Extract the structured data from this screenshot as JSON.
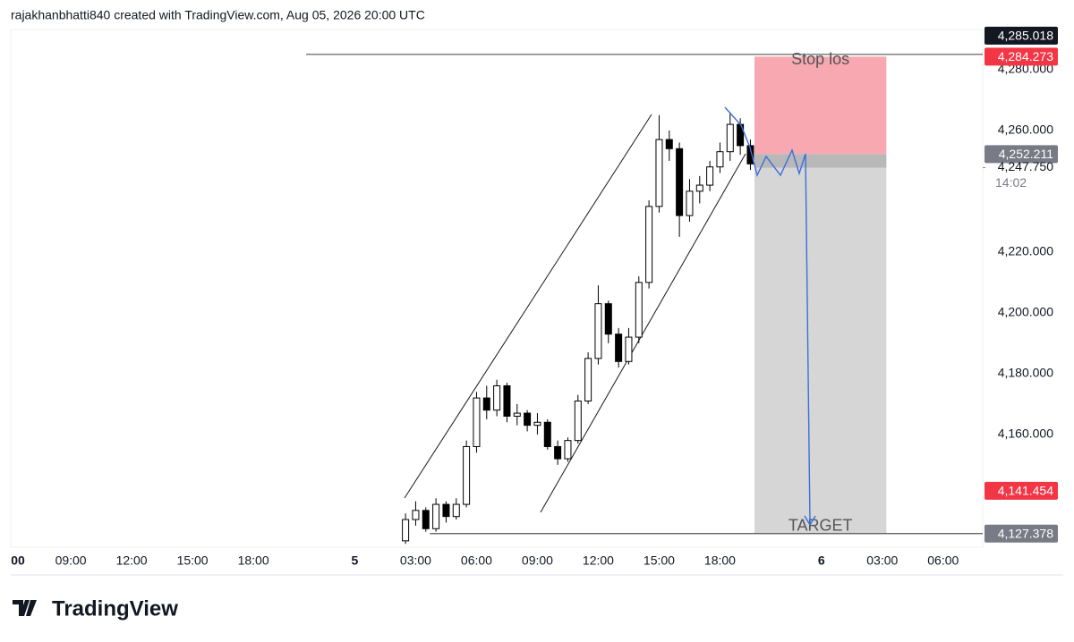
{
  "header": "rajakhanbhatti840 created with TradingView.com, Aug 05, 2026 20:00 UTC",
  "chart_data": {
    "type": "candlestick",
    "x": [
      25.5,
      26,
      26.5,
      27,
      27.5,
      28,
      28.5,
      29,
      29.5,
      30,
      30.5,
      31,
      31.5,
      32,
      32.5,
      33,
      33.5,
      34,
      34.5,
      35,
      35.5,
      36,
      36.5,
      37,
      37.5,
      38,
      38.5,
      39,
      39.5,
      40,
      40.5,
      41,
      41.5,
      42,
      42.5
    ],
    "open": [
      4125,
      4132,
      4135,
      4129,
      4137,
      4133,
      4137,
      4156,
      4172,
      4168,
      4176,
      4166,
      4167,
      4163,
      4164,
      4156,
      4152,
      4158,
      4171,
      4185,
      4203,
      4193,
      4184,
      4192,
      4210,
      4235,
      4257,
      4254,
      4232,
      4240,
      4242,
      4248,
      4253,
      4262,
      4255
    ],
    "high": [
      4134,
      4138,
      4136,
      4139,
      4138,
      4139,
      4158,
      4174,
      4176,
      4178,
      4177,
      4170,
      4168,
      4167,
      4165,
      4158,
      4159,
      4173,
      4187,
      4209,
      4204,
      4195,
      4195,
      4212,
      4237,
      4265,
      4260,
      4256,
      4244,
      4245,
      4250,
      4256,
      4266,
      4264,
      4257
    ],
    "low": [
      4124,
      4130,
      4128,
      4128,
      4131,
      4132,
      4136,
      4154,
      4165,
      4166,
      4164,
      4163,
      4161,
      4160,
      4155,
      4150,
      4151,
      4157,
      4170,
      4183,
      4190,
      4182,
      4183,
      4190,
      4208,
      4233,
      4250,
      4225,
      4230,
      4236,
      4240,
      4246,
      4250,
      4252,
      4247
    ],
    "close": [
      4132,
      4135,
      4129,
      4137,
      4133,
      4137,
      4156,
      4172,
      4168,
      4176,
      4166,
      4167,
      4163,
      4164,
      4156,
      4152,
      4158,
      4171,
      4185,
      4203,
      4193,
      4184,
      4192,
      4210,
      4235,
      4257,
      4254,
      4232,
      4240,
      4242,
      4248,
      4253,
      4262,
      4255,
      4249
    ],
    "up_color": "#ffffff",
    "down_color": "#000000",
    "xlim": [
      6.04,
      53.95
    ],
    "xticks": [
      {
        "value": 6,
        "label": "00"
      },
      {
        "value": 9,
        "label": "09:00"
      },
      {
        "value": 12,
        "label": "12:00"
      },
      {
        "value": 15,
        "label": "15:00"
      },
      {
        "value": 18,
        "label": "18:00"
      },
      {
        "value": 23,
        "label": "5"
      },
      {
        "value": 26,
        "label": "03:00"
      },
      {
        "value": 29,
        "label": "06:00"
      },
      {
        "value": 32,
        "label": "09:00"
      },
      {
        "value": 35,
        "label": "12:00"
      },
      {
        "value": 38,
        "label": "15:00"
      },
      {
        "value": 41,
        "label": "18:00"
      },
      {
        "value": 46,
        "label": "6"
      },
      {
        "value": 49,
        "label": "03:00"
      },
      {
        "value": 52,
        "label": "06:00"
      }
    ],
    "ylim": [
      4122.9,
      4293.2
    ],
    "yticks": [
      {
        "value": 4280,
        "label": "4,280.000"
      },
      {
        "value": 4260,
        "label": "4,260.000"
      },
      {
        "value": 4220,
        "label": "4,220.000"
      },
      {
        "value": 4200,
        "label": "4,200.000"
      },
      {
        "value": 4180,
        "label": "4,180.000"
      },
      {
        "value": 4160,
        "label": "4,160.000"
      }
    ],
    "horizontal_lines": [
      {
        "value": 4285.018,
        "x_start": 20.6
      },
      {
        "value": 4127.378,
        "x_start": 26.7
      }
    ],
    "position": {
      "x": [
        42.7,
        49.2
      ],
      "entry": 4252.211,
      "stop": 4284.273,
      "target": 4127.378,
      "stop_label": "Stop los",
      "target_label": "TARGET"
    },
    "current_price": {
      "value": 4247.75,
      "label": "4,247.750",
      "countdown": "14:02"
    },
    "price_labels": [
      {
        "value": 4285.018,
        "label": "4,285.018",
        "color": "#131722"
      },
      {
        "value": 4284.273,
        "label": "4,284.273",
        "color": "#f23645"
      },
      {
        "value": 4252.211,
        "label": "4,252.211",
        "color": "#787b86"
      },
      {
        "value": 4141.454,
        "label": "4,141.454",
        "color": "#f23645"
      },
      {
        "value": 4127.378,
        "label": "4,127.378",
        "color": "#787b86"
      }
    ]
  },
  "footer": "TradingView"
}
